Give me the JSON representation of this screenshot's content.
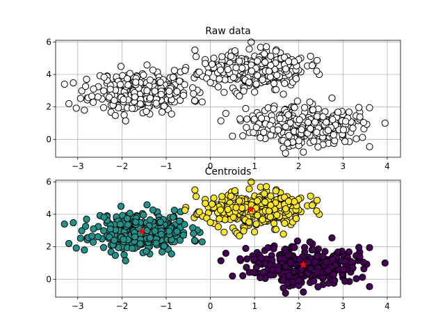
{
  "chart_data": [
    {
      "type": "scatter",
      "title": "Raw data",
      "xlabel": "",
      "ylabel": "",
      "xlim": [
        -3.5,
        4.3
      ],
      "ylim": [
        -1.1,
        6.1
      ],
      "xticks": [
        -3,
        -2,
        -1,
        0,
        1,
        2,
        3,
        4
      ],
      "yticks": [
        0,
        2,
        4,
        6
      ],
      "grid": true,
      "marker_fill": "#ffffff",
      "marker_edge": "#000000",
      "blobs": [
        {
          "center": [
            -1.55,
            2.95
          ],
          "n": 300,
          "spread": [
            0.55,
            0.6
          ],
          "seed": 11
        },
        {
          "center": [
            0.95,
            4.3
          ],
          "n": 300,
          "spread": [
            0.6,
            0.55
          ],
          "seed": 23
        },
        {
          "center": [
            2.1,
            0.9
          ],
          "n": 300,
          "spread": [
            0.6,
            0.6
          ],
          "seed": 37
        }
      ],
      "extra_points": [
        [
          -3.3,
          3.4
        ],
        [
          -3.2,
          2.2
        ],
        [
          -2.85,
          1.8
        ],
        [
          -2.8,
          3.7
        ],
        [
          -0.35,
          5.5
        ],
        [
          0.5,
          0.2
        ],
        [
          0.8,
          1.9
        ],
        [
          3.6,
          -0.45
        ],
        [
          3.95,
          1.0
        ],
        [
          3.6,
          1.95
        ],
        [
          1.7,
          -0.85
        ],
        [
          0.35,
          1.6
        ],
        [
          2.25,
          2.3
        ],
        [
          2.75,
          2.55
        ],
        [
          0.0,
          3.5
        ]
      ]
    },
    {
      "type": "scatter",
      "title": "Centroids",
      "xlabel": "",
      "ylabel": "",
      "xlim": [
        -3.5,
        4.3
      ],
      "ylim": [
        -1.1,
        6.1
      ],
      "xticks": [
        -3,
        -2,
        -1,
        0,
        1,
        2,
        3,
        4
      ],
      "yticks": [
        0,
        2,
        4,
        6
      ],
      "grid": true,
      "cluster_colors": [
        "#21918c",
        "#fde725",
        "#440154"
      ],
      "centroids": [
        {
          "x": -1.55,
          "y": 2.95
        },
        {
          "x": 0.92,
          "y": 4.3
        },
        {
          "x": 2.1,
          "y": 0.9
        }
      ],
      "centroid_color": "#ff0000"
    }
  ]
}
